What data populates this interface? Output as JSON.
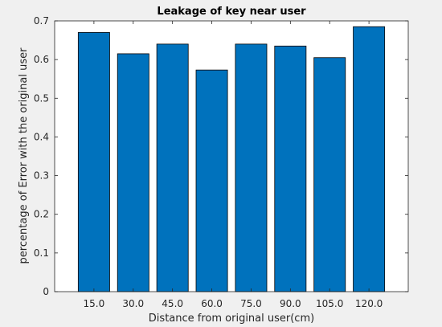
{
  "chart_data": {
    "type": "bar",
    "title": "Leakage of key near user",
    "xlabel": "Distance from original user(cm)",
    "ylabel": "percentage of Error with the original user",
    "categories": [
      "15.0",
      "30.0",
      "45.0",
      "60.0",
      "75.0",
      "90.0",
      "105.0",
      "120.0"
    ],
    "values": [
      0.67,
      0.615,
      0.64,
      0.573,
      0.64,
      0.635,
      0.605,
      0.685
    ],
    "ylim": [
      0,
      0.7
    ],
    "yticks": [
      "0",
      "0.1",
      "0.2",
      "0.3",
      "0.4",
      "0.5",
      "0.6",
      "0.7"
    ],
    "grid": false,
    "bar_color": "#0072bd",
    "background": "#f0f0f0",
    "axes_color": "#ffffff"
  }
}
